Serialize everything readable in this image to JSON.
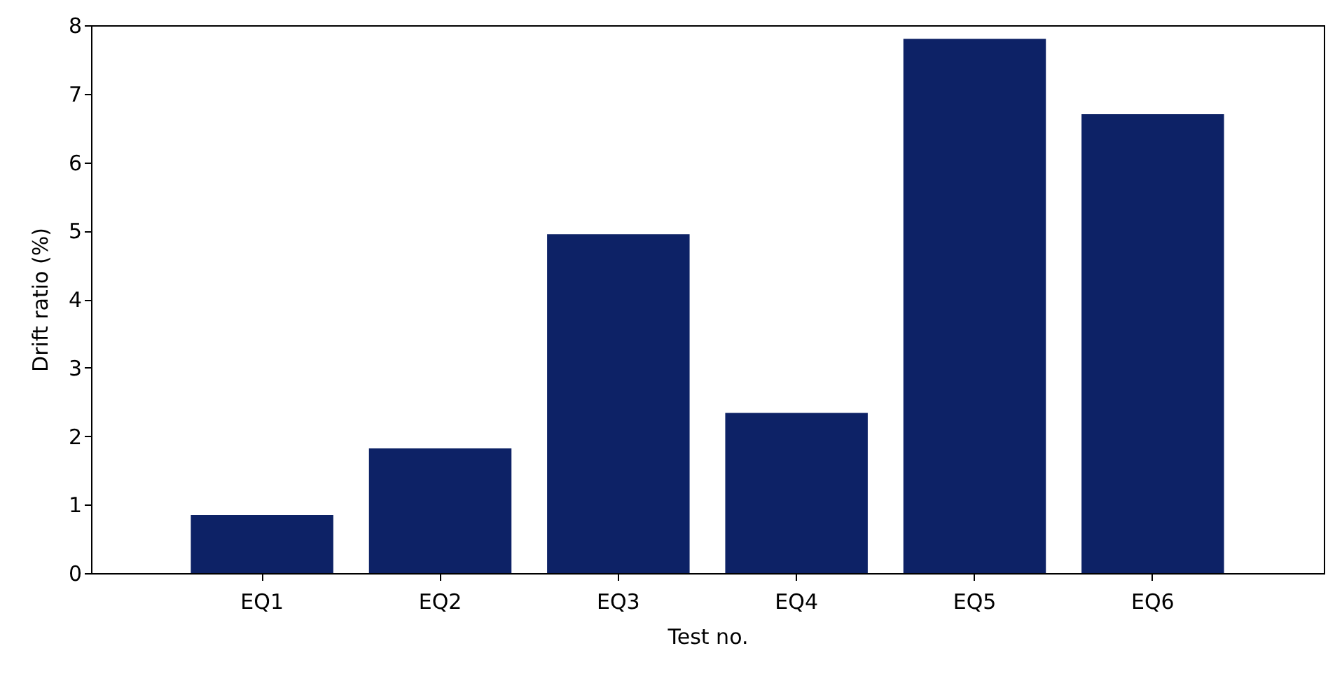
{
  "chart_data": {
    "type": "bar",
    "xlabel": "Test no.",
    "ylabel": "Drift ratio (%)",
    "categories": [
      "EQ1",
      "EQ2",
      "EQ3",
      "EQ4",
      "EQ5",
      "EQ6"
    ],
    "values": [
      0.85,
      1.82,
      4.95,
      2.34,
      7.8,
      6.7
    ],
    "color": "#0d2266",
    "ylim": [
      0,
      8
    ],
    "yticks": [
      0,
      1,
      2,
      3,
      4,
      5,
      6,
      7,
      8
    ],
    "grid": false
  }
}
